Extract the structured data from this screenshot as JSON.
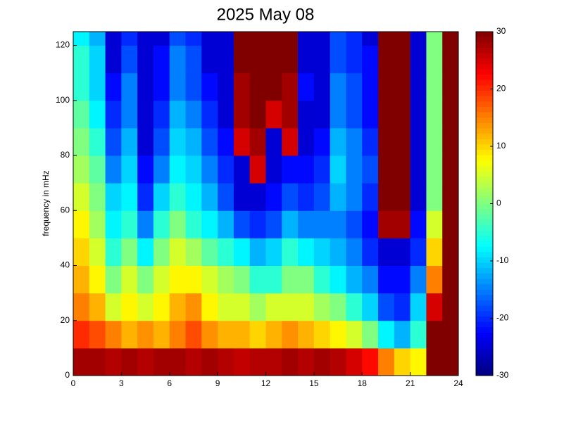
{
  "chart_data": {
    "type": "heatmap",
    "title": "2025 May 08",
    "y_label": "frequency in mHz",
    "colormap": "jet",
    "x": [
      0.5,
      1.5,
      2.5,
      3.5,
      4.5,
      5.5,
      6.5,
      7.5,
      8.5,
      9.5,
      10.5,
      11.5,
      12.5,
      13.5,
      14.5,
      15.5,
      16.5,
      17.5,
      18.5,
      19.5,
      20.5,
      21.5,
      22.5,
      23.5
    ],
    "y": [
      5,
      15,
      25,
      35,
      45,
      55,
      65,
      75,
      85,
      95,
      105,
      115,
      125
    ],
    "values": [
      [
        28,
        28,
        27,
        28,
        27,
        28,
        28,
        27,
        28,
        27,
        26,
        27,
        27,
        28,
        27,
        28,
        27,
        25,
        22,
        15,
        10,
        8,
        30,
        30
      ],
      [
        20,
        18,
        15,
        12,
        14,
        12,
        15,
        18,
        14,
        12,
        12,
        10,
        12,
        14,
        12,
        10,
        8,
        5,
        0,
        -8,
        -12,
        -5,
        30,
        30
      ],
      [
        15,
        12,
        5,
        8,
        5,
        8,
        12,
        14,
        8,
        5,
        5,
        2,
        5,
        5,
        5,
        2,
        0,
        -5,
        -10,
        -18,
        -20,
        -10,
        25,
        30
      ],
      [
        12,
        8,
        0,
        5,
        0,
        5,
        8,
        8,
        5,
        2,
        0,
        -5,
        -5,
        0,
        0,
        -5,
        -8,
        -12,
        -15,
        -22,
        -22,
        -15,
        15,
        30
      ],
      [
        10,
        5,
        -5,
        0,
        -8,
        0,
        5,
        2,
        -2,
        -5,
        -8,
        -12,
        -10,
        -5,
        -8,
        -10,
        -12,
        -15,
        -20,
        -25,
        -25,
        -20,
        10,
        30
      ],
      [
        8,
        2,
        -8,
        -5,
        -15,
        -5,
        0,
        -5,
        -8,
        -12,
        -18,
        -20,
        -18,
        -12,
        -15,
        -15,
        -15,
        -18,
        -22,
        28,
        28,
        -22,
        5,
        30
      ],
      [
        5,
        0,
        -10,
        -8,
        -20,
        -10,
        -5,
        -8,
        -12,
        -18,
        -25,
        -25,
        -22,
        -18,
        -20,
        -18,
        -12,
        -15,
        -20,
        30,
        30,
        -25,
        0,
        30
      ],
      [
        2,
        -2,
        -15,
        -10,
        -22,
        -15,
        -8,
        -10,
        -15,
        -20,
        -25,
        25,
        -25,
        -22,
        -22,
        -20,
        -10,
        -15,
        -18,
        30,
        30,
        -25,
        0,
        30
      ],
      [
        0,
        -5,
        -18,
        -12,
        -25,
        -18,
        -10,
        -12,
        -18,
        -22,
        25,
        28,
        -25,
        25,
        -25,
        -22,
        -12,
        -15,
        -20,
        30,
        30,
        -25,
        0,
        30
      ],
      [
        -2,
        -8,
        -20,
        -15,
        -25,
        -20,
        -12,
        -15,
        -20,
        -25,
        28,
        30,
        25,
        28,
        -25,
        -25,
        -15,
        -18,
        -22,
        30,
        30,
        -25,
        0,
        30
      ],
      [
        -5,
        -10,
        -22,
        -15,
        -25,
        -22,
        -15,
        -18,
        -22,
        -25,
        28,
        30,
        30,
        28,
        -22,
        -25,
        -15,
        -18,
        -22,
        30,
        30,
        -25,
        0,
        30
      ],
      [
        -5,
        -10,
        -25,
        -18,
        -25,
        -22,
        -15,
        -18,
        -25,
        -25,
        30,
        30,
        30,
        30,
        -25,
        -25,
        -18,
        -20,
        -22,
        30,
        30,
        -25,
        0,
        30
      ],
      [
        -8,
        -12,
        -25,
        -20,
        -25,
        -25,
        -18,
        -20,
        -25,
        -25,
        30,
        30,
        30,
        30,
        -25,
        -25,
        -18,
        -20,
        -25,
        30,
        30,
        -25,
        0,
        30
      ]
    ],
    "xlim": [
      0,
      24
    ],
    "xticks": [
      0,
      3,
      6,
      9,
      12,
      15,
      18,
      21,
      24
    ],
    "ylim": [
      0,
      125
    ],
    "yticks": [
      0,
      20,
      40,
      60,
      80,
      100,
      120
    ],
    "colorbar": {
      "lim": [
        -30,
        30
      ],
      "ticks": [
        -30,
        -20,
        -10,
        0,
        10,
        20,
        30
      ]
    }
  }
}
